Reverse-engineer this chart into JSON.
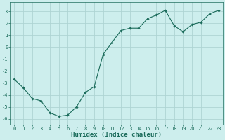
{
  "x": [
    0,
    1,
    2,
    3,
    4,
    5,
    6,
    7,
    8,
    9,
    10,
    11,
    12,
    13,
    14,
    15,
    16,
    17,
    18,
    19,
    20,
    21,
    22,
    23
  ],
  "y": [
    -2.7,
    -3.4,
    -4.3,
    -4.5,
    -5.5,
    -5.8,
    -5.7,
    -5.0,
    -3.8,
    -3.3,
    -0.6,
    0.4,
    1.4,
    1.6,
    1.6,
    2.4,
    2.7,
    3.1,
    1.8,
    1.3,
    1.9,
    2.1,
    2.8,
    3.1
  ],
  "line_color": "#1a6b5a",
  "marker": "D",
  "marker_size": 1.8,
  "bg_color": "#cdeeed",
  "grid_color": "#aed4d3",
  "xlabel": "Humidex (Indice chaleur)",
  "ylim": [
    -6.5,
    3.8
  ],
  "xlim": [
    -0.5,
    23.5
  ],
  "yticks": [
    -6,
    -5,
    -4,
    -3,
    -2,
    -1,
    0,
    1,
    2,
    3
  ],
  "xticks": [
    0,
    1,
    2,
    3,
    4,
    5,
    6,
    7,
    8,
    9,
    10,
    11,
    12,
    13,
    14,
    15,
    16,
    17,
    18,
    19,
    20,
    21,
    22,
    23
  ],
  "tick_label_fontsize": 5.0,
  "xlabel_fontsize": 6.5,
  "linewidth": 0.8
}
